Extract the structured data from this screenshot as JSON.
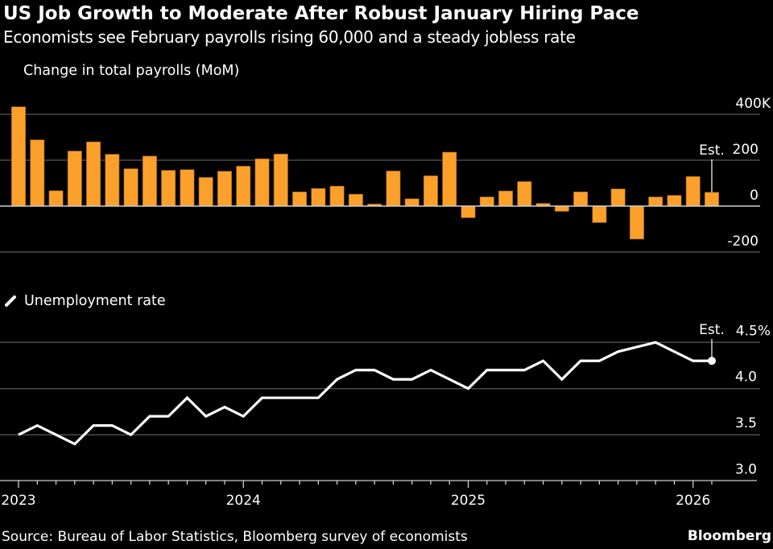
{
  "header": {
    "title": "US Job Growth to Moderate After Robust January Hiring Pace",
    "subtitle": "Economists see February payrolls rising 60,000 and a steady jobless rate"
  },
  "footer": {
    "source": "Source: Bureau of Labor Statistics, Bloomberg survey of economists",
    "logo": "Bloomberg"
  },
  "colors": {
    "background": "#000000",
    "payrolls_bar": "#FBA02B",
    "unemployment_line": "#FFFFFF",
    "grid": "#4A4A4A",
    "zero_line": "#D0D0D0"
  },
  "chart_data": [
    {
      "type": "bar",
      "title": "Change in total payrolls (MoM)",
      "legend": "Change in total payrolls (MoM)",
      "legend_position": "top-left",
      "ylabel": "",
      "ylim": [
        -250,
        450
      ],
      "yticks": [
        -200,
        0,
        200,
        400
      ],
      "ytick_labels": [
        "-200",
        "0",
        "200",
        "400K"
      ],
      "grid": true,
      "annotation": {
        "label": "Est.",
        "index": 37
      },
      "x_start": "2023-01",
      "x_end": "2026-02",
      "values": [
        433,
        289,
        67,
        240,
        280,
        226,
        163,
        218,
        156,
        159,
        125,
        152,
        174,
        206,
        227,
        62,
        77,
        87,
        52,
        9,
        153,
        32,
        132,
        235,
        -51,
        40,
        66,
        107,
        12,
        -23,
        62,
        -72,
        75,
        -144,
        40,
        47,
        129,
        60
      ]
    },
    {
      "type": "line",
      "title": "Unemployment rate",
      "legend": "Unemployment rate",
      "legend_position": "top-left",
      "ylabel": "",
      "ylim": [
        3.0,
        4.7
      ],
      "yticks": [
        3.0,
        3.5,
        4.0,
        4.5
      ],
      "ytick_labels": [
        "3.0",
        "3.5",
        "4.0",
        "4.5%"
      ],
      "grid": true,
      "annotation": {
        "label": "Est.",
        "index": 37
      },
      "x_start": "2023-01",
      "x_end": "2026-02",
      "xtick_labels": [
        {
          "label": "2023",
          "index": 0
        },
        {
          "label": "2024",
          "index": 12
        },
        {
          "label": "2025",
          "index": 24
        },
        {
          "label": "2026",
          "index": 36
        }
      ],
      "values": [
        3.5,
        3.6,
        3.5,
        3.4,
        3.6,
        3.6,
        3.5,
        3.7,
        3.7,
        3.9,
        3.7,
        3.8,
        3.7,
        3.9,
        3.9,
        3.9,
        3.9,
        4.1,
        4.2,
        4.2,
        4.1,
        4.1,
        4.2,
        4.1,
        4.0,
        4.2,
        4.2,
        4.2,
        4.3,
        4.1,
        4.3,
        4.3,
        4.4,
        null,
        4.5,
        4.4,
        4.3,
        4.3
      ]
    }
  ]
}
